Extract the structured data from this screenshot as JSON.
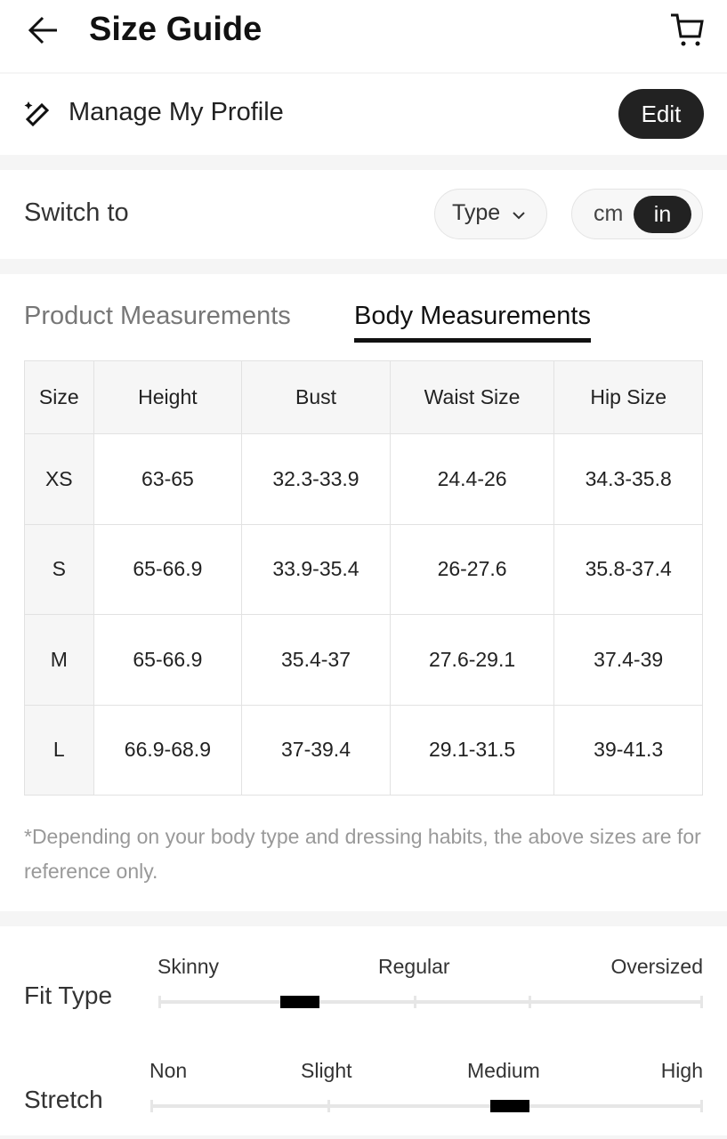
{
  "header": {
    "title": "Size Guide",
    "back_icon": "arrow-left-icon",
    "cart_icon": "cart-icon"
  },
  "profile": {
    "label": "Manage My Profile",
    "icon": "ruler-sparkle-icon",
    "edit_label": "Edit"
  },
  "switch": {
    "label": "Switch to",
    "type_label": "Type",
    "units": [
      "cm",
      "in"
    ],
    "selected_unit": "in"
  },
  "tabs": [
    {
      "label": "Product Measurements",
      "active": false
    },
    {
      "label": "Body Measurements",
      "active": true
    }
  ],
  "table": {
    "headers": [
      "Size",
      "Height",
      "Bust",
      "Waist Size",
      "Hip Size"
    ],
    "rows": [
      [
        "XS",
        "63-65",
        "32.3-33.9",
        "24.4-26",
        "34.3-35.8"
      ],
      [
        "S",
        "65-66.9",
        "33.9-35.4",
        "26-27.6",
        "35.8-37.4"
      ],
      [
        "M",
        "65-66.9",
        "35.4-37",
        "27.6-29.1",
        "37.4-39"
      ],
      [
        "L",
        "66.9-68.9",
        "37-39.4",
        "29.1-31.5",
        "39-41.3"
      ]
    ]
  },
  "note": "*Depending on your body type and dressing habits, the above sizes are for reference only.",
  "fit_type": {
    "label": "Fit Type",
    "scale": [
      "Skinny",
      "Regular",
      "Oversized"
    ],
    "level": 0.26
  },
  "stretch": {
    "label": "Stretch",
    "scale": [
      "Non",
      "Slight",
      "Medium",
      "High"
    ],
    "level": 0.65
  },
  "colors": {
    "dark": "#222222",
    "divider": "#f5f5f5"
  }
}
